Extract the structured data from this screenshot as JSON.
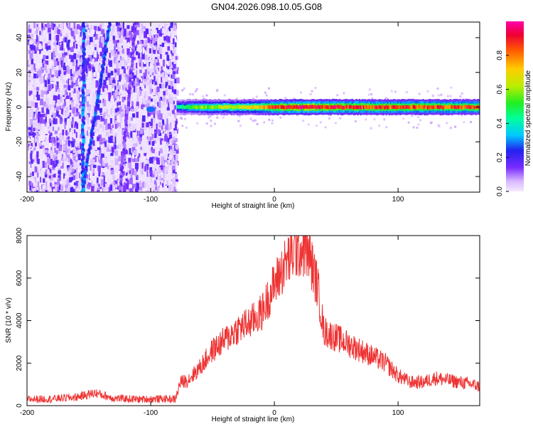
{
  "title": "GN04.2026.098.10.05.G08",
  "chart_data": [
    {
      "type": "heatmap",
      "xlabel": "Height of straight line (km)",
      "ylabel": "Frequency (Hz)",
      "xlim": [
        -200,
        166
      ],
      "ylim": [
        -49,
        49
      ],
      "xticks": [
        -200,
        -100,
        0,
        100
      ],
      "yticks": [
        -40,
        -20,
        0,
        20,
        40
      ],
      "colorbar": {
        "label": "Normalized spectral amplitude",
        "range": [
          0,
          1
        ],
        "ticks": [
          0.0,
          0.2,
          0.4,
          0.6,
          0.8
        ]
      },
      "noise_band_x": [
        -200,
        -79
      ],
      "tone_trace": {
        "freq_hz": 0,
        "x_start": -79,
        "x_end": 166,
        "segments": [
          {
            "x": -100,
            "amplitude": 0.25
          },
          {
            "x": -77,
            "amplitude": 0.45
          },
          {
            "x": -60,
            "amplitude": 0.6
          },
          {
            "x": -40,
            "amplitude": 0.65
          },
          {
            "x": -20,
            "amplitude": 0.7
          },
          {
            "x": 0,
            "amplitude": 0.9
          },
          {
            "x": 20,
            "amplitude": 1.0
          },
          {
            "x": 40,
            "amplitude": 0.95
          },
          {
            "x": 80,
            "amplitude": 0.9
          },
          {
            "x": 120,
            "amplitude": 0.9
          },
          {
            "x": 166,
            "amplitude": 0.85
          }
        ]
      },
      "diagonal_streaks": [
        {
          "x_at_top": -154,
          "x_at_bottom": -155,
          "amplitude": 0.3
        },
        {
          "x_at_top": -133,
          "x_at_bottom": -155,
          "amplitude": 0.3
        },
        {
          "x_at_top": -112,
          "x_at_bottom": -125,
          "amplitude": 0.15
        }
      ]
    },
    {
      "type": "line",
      "xlabel": "Height of straight line (km)",
      "ylabel": "SNR (10 * v/v)",
      "xlim": [
        -200,
        166
      ],
      "ylim": [
        0,
        8000
      ],
      "xticks": [
        -200,
        -100,
        0,
        100
      ],
      "yticks": [
        0,
        2000,
        4000,
        6000,
        8000
      ],
      "color": "#ee3333",
      "series": [
        {
          "x": [
            -200,
            -180,
            -160,
            -145,
            -130,
            -110,
            -90,
            -80,
            -76,
            -70,
            -60,
            -50,
            -40,
            -30,
            -20,
            -10,
            0,
            10,
            18,
            24,
            28,
            35,
            40,
            50,
            60,
            70,
            80,
            90,
            100,
            110,
            120,
            130,
            140,
            150,
            160,
            166
          ],
          "values": [
            300,
            320,
            400,
            600,
            350,
            300,
            320,
            300,
            1100,
            1200,
            1800,
            2600,
            3100,
            3600,
            3900,
            4400,
            5700,
            6800,
            7300,
            7400,
            7100,
            5600,
            3500,
            3200,
            2900,
            2600,
            2300,
            2000,
            1400,
            1100,
            1100,
            1300,
            1200,
            1100,
            1000,
            900
          ]
        }
      ]
    }
  ]
}
